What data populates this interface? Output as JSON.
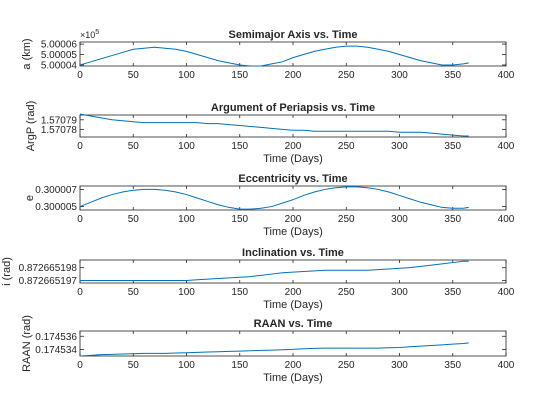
{
  "chart_data": [
    {
      "type": "line",
      "title": "Semimajor Axis vs. Time",
      "xlabel": "",
      "ylabel": "a (km)",
      "xlim": [
        0,
        400
      ],
      "ylim": [
        5.000039,
        5.000062
      ],
      "y_multiplier": "×10^5",
      "y_multiplier_base": "×10",
      "y_multiplier_exp": "5",
      "xticks": [
        "0",
        "50",
        "100",
        "150",
        "200",
        "250",
        "300",
        "350",
        "400"
      ],
      "yticks": [
        {
          "value": 5.00004,
          "label": "5.00004"
        },
        {
          "value": 5.00005,
          "label": "5.00005"
        },
        {
          "value": 5.00006,
          "label": "5.00006"
        }
      ],
      "series": [
        {
          "color": "#0072BD",
          "x": [
            0,
            10,
            20,
            30,
            40,
            50,
            60,
            70,
            80,
            90,
            100,
            110,
            120,
            130,
            140,
            150,
            160,
            170,
            180,
            190,
            200,
            210,
            220,
            230,
            240,
            250,
            260,
            270,
            280,
            290,
            300,
            310,
            320,
            330,
            340,
            350,
            360,
            365
          ],
          "y": [
            5.00004,
            5.000043,
            5.000046,
            5.000049,
            5.000052,
            5.000055,
            5.000056,
            5.000057,
            5.000056,
            5.000055,
            5.000053,
            5.00005,
            5.000047,
            5.000044,
            5.000042,
            5.00004,
            5.000039,
            5.000039,
            5.000041,
            5.000043,
            5.000047,
            5.00005,
            5.000053,
            5.000055,
            5.000057,
            5.000058,
            5.000058,
            5.000057,
            5.000055,
            5.000053,
            5.00005,
            5.000047,
            5.000044,
            5.000042,
            5.00004,
            5.00004,
            5.000041,
            5.000042
          ]
        }
      ]
    },
    {
      "type": "line",
      "title": "Argument of Periapsis vs. Time",
      "xlabel": "Time (Days)",
      "ylabel": "ArgP (rad)",
      "xlim": [
        0,
        400
      ],
      "ylim": [
        1.570772,
        1.570795
      ],
      "xticks": [
        "0",
        "50",
        "100",
        "150",
        "200",
        "250",
        "300",
        "350",
        "400"
      ],
      "yticks": [
        {
          "value": 1.57078,
          "label": "1.57078"
        },
        {
          "value": 1.57079,
          "label": "1.57079"
        }
      ],
      "series": [
        {
          "color": "#0072BD",
          "x": [
            0,
            10,
            20,
            30,
            40,
            50,
            60,
            70,
            80,
            90,
            100,
            110,
            120,
            130,
            140,
            150,
            160,
            170,
            180,
            190,
            200,
            210,
            220,
            230,
            240,
            250,
            260,
            270,
            280,
            290,
            300,
            310,
            320,
            330,
            340,
            350,
            360,
            365
          ],
          "y": [
            1.570796,
            1.570794,
            1.570792,
            1.57079,
            1.570789,
            1.570788,
            1.570787,
            1.570787,
            1.570787,
            1.570787,
            1.570787,
            1.570787,
            1.570786,
            1.570786,
            1.570785,
            1.570784,
            1.570783,
            1.570782,
            1.570781,
            1.57078,
            1.570779,
            1.570779,
            1.570778,
            1.570778,
            1.570778,
            1.570778,
            1.570778,
            1.570778,
            1.570778,
            1.570778,
            1.570777,
            1.570777,
            1.570777,
            1.570776,
            1.570775,
            1.570774,
            1.570773,
            1.570773
          ]
        }
      ]
    },
    {
      "type": "line",
      "title": "Eccentricity vs. Time",
      "xlabel": "Time (Days)",
      "ylabel": "e",
      "xlim": [
        0,
        400
      ],
      "ylim": [
        0.3000046,
        0.3000074
      ],
      "xticks": [
        "0",
        "50",
        "100",
        "150",
        "200",
        "250",
        "300",
        "350",
        "400"
      ],
      "yticks": [
        {
          "value": 0.300005,
          "label": "0.300005"
        },
        {
          "value": 0.300007,
          "label": "0.300007"
        }
      ],
      "series": [
        {
          "color": "#0072BD",
          "x": [
            0,
            10,
            20,
            30,
            40,
            50,
            60,
            70,
            80,
            90,
            100,
            110,
            120,
            130,
            140,
            150,
            160,
            170,
            180,
            190,
            200,
            210,
            220,
            230,
            240,
            250,
            260,
            270,
            280,
            290,
            300,
            310,
            320,
            330,
            340,
            350,
            360,
            365
          ],
          "y": [
            0.300005,
            0.3000055,
            0.300006,
            0.3000064,
            0.3000067,
            0.3000069,
            0.300007,
            0.300007,
            0.3000069,
            0.3000067,
            0.3000064,
            0.300006,
            0.3000056,
            0.3000052,
            0.3000049,
            0.3000047,
            0.3000047,
            0.3000048,
            0.300005,
            0.3000054,
            0.3000058,
            0.3000063,
            0.3000067,
            0.300007,
            0.3000072,
            0.3000073,
            0.3000073,
            0.3000072,
            0.300007,
            0.3000067,
            0.3000063,
            0.3000059,
            0.3000055,
            0.3000052,
            0.3000049,
            0.3000048,
            0.3000048,
            0.3000049
          ]
        }
      ]
    },
    {
      "type": "line",
      "title": "Inclination vs. Time",
      "xlabel": "Time (Days)",
      "ylabel": "i (rad)",
      "xlim": [
        0,
        400
      ],
      "ylim": [
        0.8726651968,
        0.8726651986
      ],
      "xticks": [
        "0",
        "50",
        "100",
        "150",
        "200",
        "250",
        "300",
        "350",
        "400"
      ],
      "yticks": [
        {
          "value": 0.872665197,
          "label": "0.872665197"
        },
        {
          "value": 0.872665198,
          "label": "0.872665198"
        }
      ],
      "series": [
        {
          "color": "#0072BD",
          "x": [
            0,
            10,
            20,
            30,
            40,
            50,
            60,
            70,
            80,
            90,
            100,
            110,
            120,
            130,
            140,
            150,
            160,
            170,
            180,
            190,
            200,
            210,
            220,
            230,
            240,
            250,
            260,
            270,
            280,
            290,
            300,
            310,
            320,
            330,
            340,
            350,
            360,
            365
          ],
          "y": [
            0.872665197,
            0.872665197,
            0.872665197,
            0.872665197,
            0.872665197,
            0.872665197,
            0.872665197,
            0.872665197,
            0.872665197,
            0.872665197,
            0.872665197,
            0.87266519705,
            0.8726651971,
            0.87266519715,
            0.8726651972,
            0.87266519725,
            0.8726651973,
            0.8726651974,
            0.8726651975,
            0.8726651976,
            0.87266519765,
            0.8726651977,
            0.87266519775,
            0.8726651978,
            0.8726651978,
            0.8726651978,
            0.8726651978,
            0.8726651978,
            0.87266519785,
            0.8726651979,
            0.87266519795,
            0.872665198,
            0.8726651981,
            0.8726651982,
            0.8726651983,
            0.8726651984,
            0.8726651985,
            0.8726651985
          ]
        }
      ]
    },
    {
      "type": "line",
      "title": "RAAN vs. Time",
      "xlabel": "Time (Days)",
      "ylabel": "RAAN (rad)",
      "xlim": [
        0,
        400
      ],
      "ylim": [
        0.174533,
        0.1745368
      ],
      "xticks": [
        "0",
        "50",
        "100",
        "150",
        "200",
        "250",
        "300",
        "350",
        "400"
      ],
      "yticks": [
        {
          "value": 0.174534,
          "label": "0.174534"
        },
        {
          "value": 0.174536,
          "label": "0.174536"
        }
      ],
      "series": [
        {
          "color": "#0072BD",
          "x": [
            0,
            10,
            20,
            30,
            40,
            50,
            60,
            70,
            80,
            90,
            100,
            110,
            120,
            130,
            140,
            150,
            160,
            170,
            180,
            190,
            200,
            210,
            220,
            230,
            240,
            250,
            260,
            270,
            280,
            290,
            300,
            310,
            320,
            330,
            340,
            350,
            360,
            365
          ],
          "y": [
            0.174533,
            0.1745331,
            0.1745332,
            0.17453325,
            0.1745333,
            0.17453335,
            0.1745334,
            0.1745334,
            0.1745334,
            0.17453345,
            0.1745335,
            0.17453355,
            0.1745336,
            0.17453365,
            0.1745337,
            0.17453375,
            0.1745338,
            0.17453385,
            0.1745339,
            0.17453395,
            0.174534,
            0.1745341,
            0.17453415,
            0.1745342,
            0.1745342,
            0.1745342,
            0.1745342,
            0.1745342,
            0.1745342,
            0.17453425,
            0.1745343,
            0.1745344,
            0.1745345,
            0.1745346,
            0.1745347,
            0.1745348,
            0.1745349,
            0.174535
          ]
        }
      ]
    }
  ]
}
